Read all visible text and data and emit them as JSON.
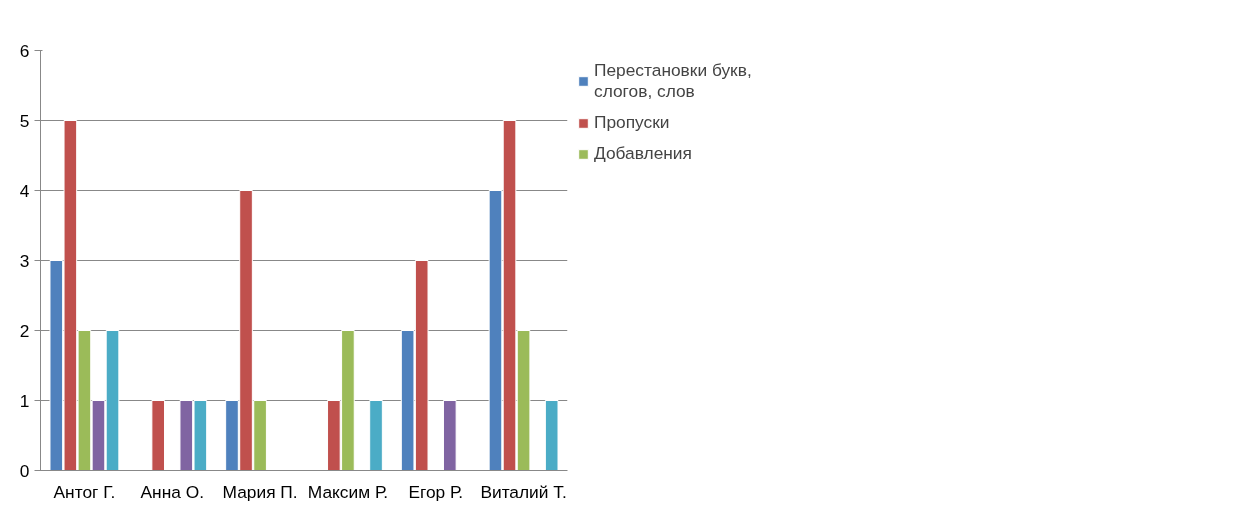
{
  "chart_data": {
    "type": "bar",
    "categories": [
      "Антог Г.",
      "Анна О.",
      "Мария П.",
      "Максим Р.",
      "Егор Р.",
      "Виталий Т."
    ],
    "series": [
      {
        "name": "Перестановки букв, слогов, слов",
        "color": "#4f81bd",
        "values": [
          3,
          null,
          1,
          null,
          2,
          4
        ]
      },
      {
        "name": "Пропуски",
        "color": "#c0504d",
        "values": [
          5,
          1,
          4,
          1,
          3,
          5
        ]
      },
      {
        "name": "Добавления",
        "color": "#9bbb59",
        "values": [
          2,
          null,
          1,
          2,
          null,
          2
        ]
      },
      {
        "color": "#8064a2",
        "values": [
          1,
          1,
          null,
          null,
          1,
          null
        ]
      },
      {
        "color": "#4bacc6",
        "values": [
          2,
          1,
          null,
          1,
          null,
          1
        ]
      }
    ],
    "ylim": [
      0,
      6
    ],
    "yticks": [
      0,
      1,
      2,
      3,
      4,
      5,
      6
    ],
    "grid": "y",
    "legend": "right"
  }
}
